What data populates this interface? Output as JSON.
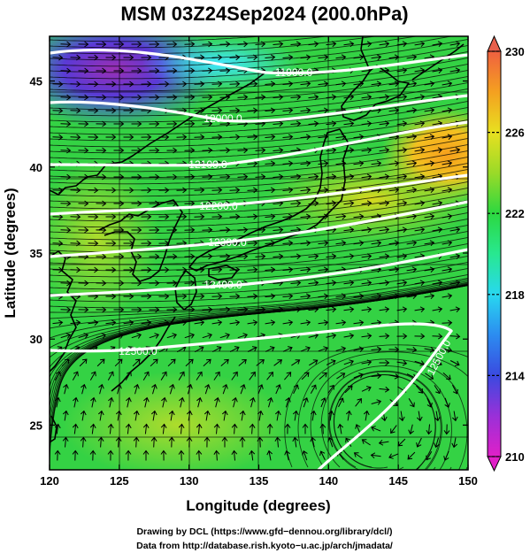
{
  "title": "MSM 03Z24Sep2024 (200.0hPa)",
  "xlabel": "Longitude (degrees)",
  "ylabel": "Latitude  (degrees)",
  "x_ticks": [
    "120",
    "125",
    "130",
    "135",
    "140",
    "145",
    "150"
  ],
  "y_ticks": [
    "25",
    "30",
    "35",
    "40",
    "45"
  ],
  "xlim": [
    120,
    150
  ],
  "ylim": [
    22.4,
    47.6
  ],
  "colorbar": {
    "ticks": [
      "230",
      "226",
      "222",
      "218",
      "214",
      "210"
    ],
    "range": [
      210,
      230
    ]
  },
  "contours": {
    "labels": [
      "11900.0",
      "12000.0",
      "12100.0",
      "12200.0",
      "12300.0",
      "12400.0",
      "12500.0",
      "12500.0"
    ]
  },
  "colors": {
    "land_outline": "#000000",
    "contour": "#ffffff",
    "arrow": "#000000"
  },
  "footer": {
    "line1": "Drawing by DCL (https://www.gfd−dennou.org/library/dcl/)",
    "line2": "Data from http://database.rish.kyoto−u.ac.jp/arch/jmadata/"
  }
}
